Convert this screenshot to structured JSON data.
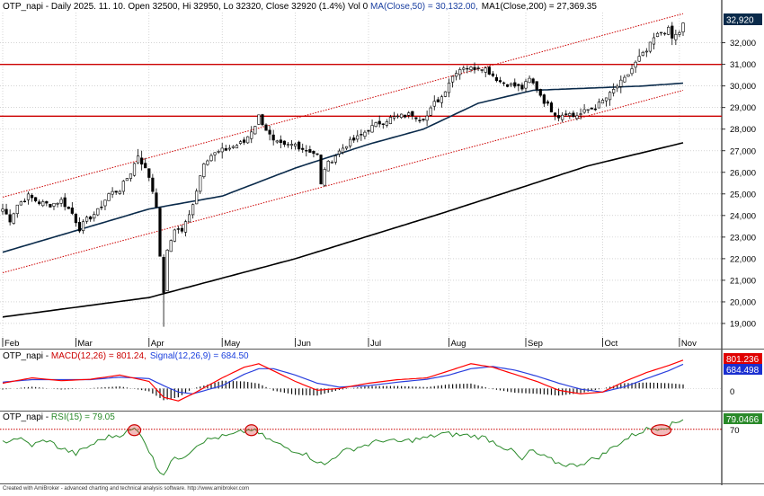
{
  "chart_data": [
    {
      "type": "candlestick",
      "panel": "price",
      "title_prefix": "OTP_napi - Daily 2025. 11. 10. Open 32500, Hi 32950, Lo 32320, Close 32920 (1.4%) Vol 0 ",
      "ma50_label": "MA(Close,50) = 30,132.00,",
      "ma200_label": "MA1(Close,200) = 27,369.35",
      "last_price_label": "32,920",
      "ylim": [
        18500,
        33400
      ],
      "ytick_values": [
        19000,
        20000,
        21000,
        22000,
        23000,
        24000,
        25000,
        26000,
        27000,
        28000,
        29000,
        30000,
        31000,
        32000
      ],
      "ytick_labels": [
        "19,000",
        "20,000",
        "21,000",
        "22,000",
        "23,000",
        "24,000",
        "25,000",
        "26,000",
        "27,000",
        "28,000",
        "29,000",
        "30,000",
        "31,000",
        "32,000"
      ],
      "xtick_labels": [
        "Feb",
        "Mar",
        "Apr",
        "May",
        "Jun",
        "Jul",
        "Aug",
        "Sep",
        "Oct",
        "Nov"
      ],
      "xtick_days": [
        0,
        20,
        40,
        60,
        80,
        100,
        122,
        143,
        164,
        185
      ],
      "anchors_close": [
        [
          0,
          24300
        ],
        [
          2,
          23800
        ],
        [
          4,
          24500
        ],
        [
          7,
          24900
        ],
        [
          10,
          24600
        ],
        [
          13,
          24500
        ],
        [
          16,
          24700
        ],
        [
          19,
          24100
        ],
        [
          21,
          23400
        ],
        [
          23,
          23800
        ],
        [
          26,
          24200
        ],
        [
          29,
          25000
        ],
        [
          32,
          25200
        ],
        [
          35,
          26000
        ],
        [
          37,
          26800
        ],
        [
          40,
          25800
        ],
        [
          42,
          24500
        ],
        [
          43,
          22000
        ],
        [
          44,
          20500
        ],
        [
          45,
          22300
        ],
        [
          47,
          23400
        ],
        [
          49,
          23300
        ],
        [
          51,
          24000
        ],
        [
          53,
          25200
        ],
        [
          55,
          26500
        ],
        [
          57,
          26800
        ],
        [
          60,
          27000
        ],
        [
          63,
          27200
        ],
        [
          66,
          27400
        ],
        [
          69,
          28200
        ],
        [
          70,
          28600
        ],
        [
          72,
          28000
        ],
        [
          74,
          27400
        ],
        [
          77,
          27200
        ],
        [
          80,
          27300
        ],
        [
          82,
          27100
        ],
        [
          84,
          27000
        ],
        [
          86,
          26800
        ],
        [
          87,
          25400
        ],
        [
          88,
          26200
        ],
        [
          91,
          26800
        ],
        [
          94,
          27300
        ],
        [
          97,
          27600
        ],
        [
          100,
          28000
        ],
        [
          103,
          28300
        ],
        [
          106,
          28500
        ],
        [
          109,
          28600
        ],
        [
          112,
          28700
        ],
        [
          114,
          28500
        ],
        [
          116,
          28600
        ],
        [
          118,
          29200
        ],
        [
          120,
          29500
        ],
        [
          122,
          30200
        ],
        [
          124,
          30700
        ],
        [
          126,
          30900
        ],
        [
          128,
          30800
        ],
        [
          130,
          30900
        ],
        [
          132,
          30800
        ],
        [
          134,
          30500
        ],
        [
          136,
          30200
        ],
        [
          138,
          30100
        ],
        [
          140,
          30000
        ],
        [
          142,
          29900
        ],
        [
          144,
          30300
        ],
        [
          146,
          29900
        ],
        [
          148,
          29300
        ],
        [
          150,
          28900
        ],
        [
          152,
          28600
        ],
        [
          154,
          28800
        ],
        [
          156,
          28600
        ],
        [
          158,
          28700
        ],
        [
          160,
          28900
        ],
        [
          162,
          29000
        ],
        [
          164,
          29300
        ],
        [
          166,
          29600
        ],
        [
          168,
          30000
        ],
        [
          170,
          30300
        ],
        [
          172,
          30800
        ],
        [
          174,
          31300
        ],
        [
          176,
          31600
        ],
        [
          178,
          32200
        ],
        [
          180,
          32500
        ],
        [
          182,
          32600
        ],
        [
          183,
          32200
        ],
        [
          185,
          32500
        ],
        [
          186,
          32920
        ]
      ],
      "last_bar": {
        "open": 32500,
        "high": 32950,
        "low": 32320,
        "close": 32920
      },
      "horizontal_lines": [
        31000,
        28600
      ],
      "channel_upper": [
        [
          0,
          24850
        ],
        [
          186,
          33350
        ]
      ],
      "channel_lower": [
        [
          0,
          21350
        ],
        [
          186,
          29800
        ]
      ],
      "series": [
        {
          "name": "MA(Close,50)",
          "last_value": 30132.0,
          "anchors": [
            [
              0,
              22300
            ],
            [
              20,
              23300
            ],
            [
              40,
              24300
            ],
            [
              60,
              24900
            ],
            [
              80,
              26200
            ],
            [
              100,
              27300
            ],
            [
              115,
              28000
            ],
            [
              130,
              29200
            ],
            [
              145,
              29800
            ],
            [
              160,
              29900
            ],
            [
              175,
              30000
            ],
            [
              186,
              30132
            ]
          ]
        },
        {
          "name": "MA1(Close,200)",
          "last_value": 27369.35,
          "anchors": [
            [
              0,
              19300
            ],
            [
              40,
              20200
            ],
            [
              80,
              22000
            ],
            [
              120,
              24100
            ],
            [
              160,
              26300
            ],
            [
              186,
              27369.35
            ]
          ]
        }
      ]
    },
    {
      "type": "line",
      "panel": "macd",
      "label_prefix": "OTP_napi - ",
      "macd_label": "MACD(12,26) = 801.24,",
      "signal_label": "Signal(12,26,9) = 684.50",
      "zero_label": "0",
      "ylim": [
        -600,
        1050
      ],
      "series": [
        {
          "name": "MACD(12,26)",
          "value_label": "801.236",
          "last_value": 801.236,
          "anchors": [
            [
              0,
              150
            ],
            [
              8,
              300
            ],
            [
              16,
              220
            ],
            [
              24,
              260
            ],
            [
              32,
              380
            ],
            [
              40,
              200
            ],
            [
              44,
              -250
            ],
            [
              48,
              -350
            ],
            [
              52,
              -150
            ],
            [
              60,
              300
            ],
            [
              66,
              600
            ],
            [
              70,
              700
            ],
            [
              74,
              500
            ],
            [
              80,
              200
            ],
            [
              86,
              -50
            ],
            [
              92,
              0
            ],
            [
              100,
              150
            ],
            [
              108,
              250
            ],
            [
              116,
              300
            ],
            [
              122,
              500
            ],
            [
              128,
              700
            ],
            [
              134,
              600
            ],
            [
              140,
              400
            ],
            [
              146,
              200
            ],
            [
              152,
              -50
            ],
            [
              158,
              -150
            ],
            [
              164,
              -100
            ],
            [
              170,
              200
            ],
            [
              176,
              450
            ],
            [
              182,
              650
            ],
            [
              186,
              801.236
            ]
          ]
        },
        {
          "name": "Signal(12,26,9)",
          "value_label": "684.498",
          "last_value": 684.498,
          "anchors": [
            [
              0,
              180
            ],
            [
              8,
              250
            ],
            [
              16,
              250
            ],
            [
              24,
              250
            ],
            [
              32,
              320
            ],
            [
              40,
              280
            ],
            [
              44,
              80
            ],
            [
              48,
              -100
            ],
            [
              52,
              -150
            ],
            [
              60,
              80
            ],
            [
              66,
              400
            ],
            [
              70,
              560
            ],
            [
              74,
              560
            ],
            [
              80,
              380
            ],
            [
              86,
              150
            ],
            [
              92,
              40
            ],
            [
              100,
              80
            ],
            [
              108,
              180
            ],
            [
              116,
              260
            ],
            [
              122,
              380
            ],
            [
              128,
              560
            ],
            [
              134,
              620
            ],
            [
              140,
              520
            ],
            [
              146,
              350
            ],
            [
              152,
              150
            ],
            [
              158,
              -20
            ],
            [
              164,
              -100
            ],
            [
              170,
              50
            ],
            [
              176,
              280
            ],
            [
              182,
              500
            ],
            [
              186,
              684.498
            ]
          ]
        }
      ]
    },
    {
      "type": "line",
      "panel": "rsi",
      "label_prefix": "OTP_napi - ",
      "rsi_label": "RSI(15) = 79.05",
      "level_label": "70",
      "level": 70,
      "ylim": [
        20,
        85
      ],
      "series": [
        {
          "name": "RSI(15)",
          "value_label": "79.0466",
          "last_value": 79.0466,
          "anchors": [
            [
              0,
              58
            ],
            [
              4,
              62
            ],
            [
              8,
              55
            ],
            [
              12,
              60
            ],
            [
              16,
              52
            ],
            [
              20,
              47
            ],
            [
              24,
              55
            ],
            [
              28,
              62
            ],
            [
              32,
              65
            ],
            [
              36,
              70
            ],
            [
              38,
              65
            ],
            [
              40,
              50
            ],
            [
              42,
              35
            ],
            [
              44,
              28
            ],
            [
              46,
              40
            ],
            [
              50,
              46
            ],
            [
              54,
              58
            ],
            [
              58,
              62
            ],
            [
              62,
              64
            ],
            [
              66,
              68
            ],
            [
              68,
              70
            ],
            [
              70,
              66
            ],
            [
              74,
              58
            ],
            [
              78,
              52
            ],
            [
              82,
              48
            ],
            [
              86,
              40
            ],
            [
              88,
              36
            ],
            [
              92,
              48
            ],
            [
              96,
              52
            ],
            [
              100,
              56
            ],
            [
              104,
              60
            ],
            [
              108,
              58
            ],
            [
              112,
              60
            ],
            [
              116,
              62
            ],
            [
              120,
              66
            ],
            [
              124,
              65
            ],
            [
              128,
              64
            ],
            [
              132,
              62
            ],
            [
              136,
              55
            ],
            [
              140,
              48
            ],
            [
              142,
              40
            ],
            [
              144,
              50
            ],
            [
              148,
              44
            ],
            [
              152,
              38
            ],
            [
              156,
              36
            ],
            [
              160,
              40
            ],
            [
              164,
              46
            ],
            [
              168,
              56
            ],
            [
              172,
              64
            ],
            [
              176,
              70
            ],
            [
              180,
              72
            ],
            [
              182,
              73
            ],
            [
              186,
              79.0466
            ]
          ]
        }
      ]
    }
  ],
  "highlight_color": "#cc0000",
  "ma50_color": "#0a2a4a",
  "macd_color": "#ff0000",
  "signal_color": "#2a3fdd",
  "rsi_color": "#2a8a2a",
  "footer_text": "Created with AmiBroker - advanced charting and technical analysis software. http://www.amibroker.com"
}
